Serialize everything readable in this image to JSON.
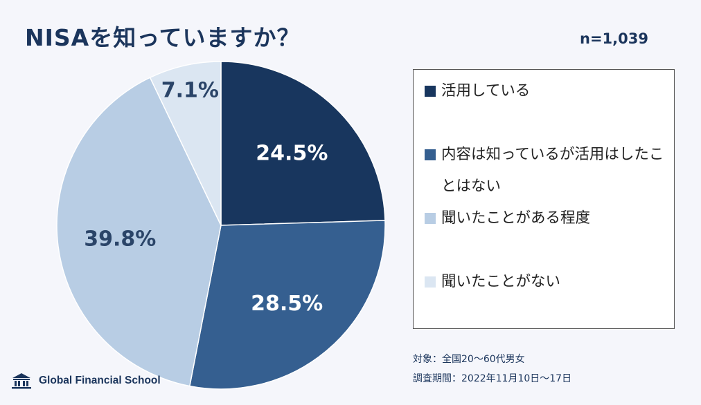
{
  "header": {
    "title": "NISAを知っていますか？",
    "sample_size": "n=1,039"
  },
  "chart_data": {
    "type": "pie",
    "title": "NISAを知っていますか？",
    "start_angle_deg": 0,
    "direction": "clockwise",
    "slices": [
      {
        "label": "活用している",
        "value": 24.5,
        "display": "24.5%",
        "color": "#18365e",
        "label_color": "#ffffff"
      },
      {
        "label": "内容は知っているが活用はしたことはない",
        "value": 28.5,
        "display": "28.5%",
        "color": "#355f90",
        "label_color": "#ffffff"
      },
      {
        "label": "聞いたことがある程度",
        "value": 39.8,
        "display": "39.8%",
        "color": "#b8cde4",
        "label_color": "#2a4468"
      },
      {
        "label": "聞いたことがない",
        "value": 7.1,
        "display": "7.1%",
        "color": "#dbe6f2",
        "label_color": "#2a4468"
      }
    ]
  },
  "legend": {
    "items": [
      {
        "label": "活用している",
        "color": "#18365e"
      },
      {
        "label": "内容は知っているが活用はしたことはない",
        "color": "#355f90"
      },
      {
        "label": "聞いたことがある程度",
        "color": "#b8cde4"
      },
      {
        "label": "聞いたことがない",
        "color": "#dbe6f2"
      }
    ]
  },
  "notes": {
    "target": "対象：全国20～60代男女",
    "period": "調査期間：2022年11月10日～17日"
  },
  "logo": {
    "text": "Global Financial School",
    "icon": "school-building-icon"
  }
}
